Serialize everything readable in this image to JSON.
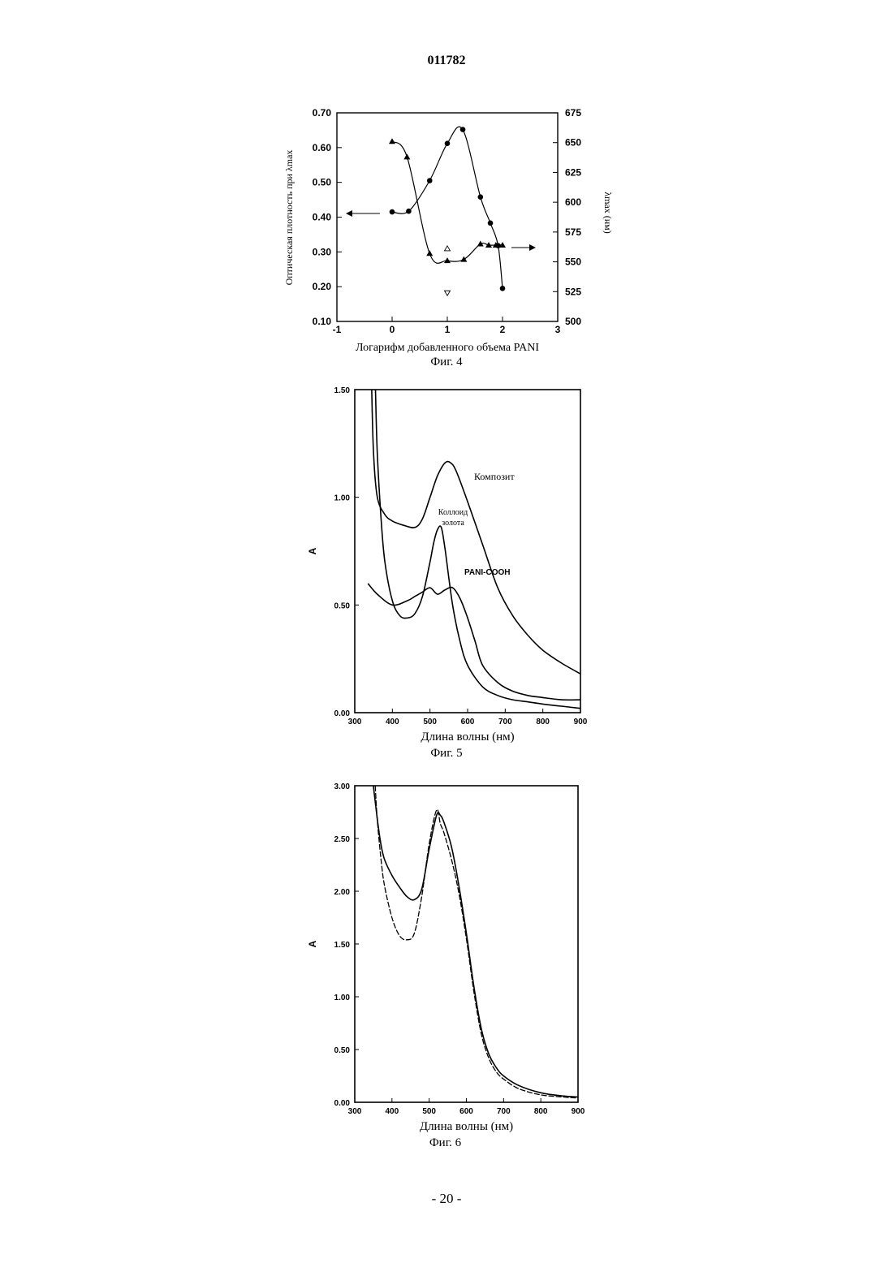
{
  "header": {
    "doc_number": "011782"
  },
  "footer": {
    "page_number": "- 20 -"
  },
  "chart_data": [
    {
      "id": "fig4",
      "type": "line",
      "caption": "Фиг. 4",
      "xlabel": "Логарифм добавленного объема PANI",
      "ylabel_left": "Оптическая плотность при λmax",
      "ylabel_right": "λmax (нм)",
      "xlim": [
        -1,
        3
      ],
      "ylim_left": [
        0.1,
        0.7
      ],
      "ylim_right": [
        500,
        675
      ],
      "x_ticks": [
        "-1",
        "0",
        "1",
        "2",
        "3"
      ],
      "y_ticks_left": [
        "0.70",
        "0.60",
        "0.50",
        "0.40",
        "0.30",
        "0.20",
        "0.10"
      ],
      "y_ticks_right": [
        "675",
        "650",
        "625",
        "600",
        "575",
        "550",
        "525",
        "500"
      ],
      "series": [
        {
          "axis": "left",
          "marker": "circle",
          "x": [
            0.0,
            0.3,
            0.68,
            1.0,
            1.28,
            1.6,
            1.78,
            1.92,
            2.0
          ],
          "y": [
            0.415,
            0.417,
            0.505,
            0.612,
            0.652,
            0.458,
            0.383,
            0.318,
            0.195
          ]
        },
        {
          "axis": "right",
          "marker": "triangle",
          "x": [
            0.0,
            0.27,
            0.68,
            1.0,
            1.3,
            1.6,
            1.75,
            1.88,
            2.0
          ],
          "y": [
            651,
            638,
            557,
            551,
            552,
            565,
            564,
            564,
            564
          ]
        },
        {
          "axis": "right",
          "marker": "open-triangle",
          "x": [
            1.0
          ],
          "y": [
            561
          ]
        },
        {
          "axis": "right",
          "marker": "open-triangle-down",
          "x": [
            1.0
          ],
          "y": [
            524
          ]
        }
      ]
    },
    {
      "id": "fig5",
      "type": "line",
      "caption": "Фиг. 5",
      "xlabel": "Длина волны (нм)",
      "ylabel": "A",
      "xlim": [
        300,
        900
      ],
      "ylim": [
        0,
        1.5
      ],
      "x_ticks": [
        "300",
        "400",
        "500",
        "600",
        "700",
        "800",
        "900"
      ],
      "y_ticks": [
        "1.50",
        "1.00",
        "0.50",
        "0.00"
      ],
      "series": [
        {
          "name": "Композит",
          "x": [
            345,
            350,
            360,
            380,
            400,
            430,
            460,
            480,
            500,
            520,
            540,
            555,
            570,
            600,
            640,
            680,
            720,
            760,
            800,
            850,
            900
          ],
          "y": [
            1.5,
            1.2,
            1.0,
            0.92,
            0.89,
            0.87,
            0.86,
            0.9,
            1.0,
            1.1,
            1.16,
            1.16,
            1.12,
            0.98,
            0.78,
            0.58,
            0.45,
            0.36,
            0.29,
            0.23,
            0.18
          ]
        },
        {
          "name": "Коллоид золота",
          "x": [
            355,
            360,
            370,
            380,
            400,
            420,
            440,
            460,
            480,
            500,
            510,
            520,
            530,
            540,
            560,
            580,
            600,
            640,
            680,
            720,
            760,
            800,
            850,
            900
          ],
          "y": [
            1.5,
            1.2,
            0.9,
            0.7,
            0.52,
            0.45,
            0.44,
            0.46,
            0.54,
            0.7,
            0.79,
            0.85,
            0.86,
            0.76,
            0.5,
            0.33,
            0.22,
            0.12,
            0.08,
            0.06,
            0.05,
            0.04,
            0.03,
            0.02
          ]
        },
        {
          "name": "PANI-COOH",
          "x": [
            335,
            360,
            400,
            440,
            460,
            480,
            500,
            520,
            540,
            560,
            580,
            600,
            620,
            640,
            680,
            720,
            760,
            800,
            850,
            900
          ],
          "y": [
            0.6,
            0.55,
            0.5,
            0.52,
            0.54,
            0.56,
            0.58,
            0.55,
            0.57,
            0.58,
            0.53,
            0.44,
            0.33,
            0.22,
            0.14,
            0.1,
            0.08,
            0.07,
            0.06,
            0.06
          ]
        }
      ]
    },
    {
      "id": "fig6",
      "type": "line",
      "caption": "Фиг. 6",
      "xlabel": "Длина волны (нм)",
      "ylabel": "A",
      "xlim": [
        300,
        900
      ],
      "ylim": [
        0,
        3
      ],
      "x_ticks": [
        "300",
        "400",
        "500",
        "600",
        "700",
        "800",
        "900"
      ],
      "y_ticks": [
        "3.00",
        "2.50",
        "2.00",
        "1.50",
        "1.00",
        "0.50",
        "0.00"
      ],
      "series": [
        {
          "style": "solid",
          "x": [
            350,
            360,
            370,
            380,
            400,
            420,
            440,
            460,
            480,
            500,
            520,
            530,
            540,
            560,
            580,
            600,
            620,
            640,
            660,
            680,
            700,
            740,
            800,
            860,
            900
          ],
          "y": [
            3.0,
            2.7,
            2.45,
            2.3,
            2.15,
            2.04,
            1.95,
            1.92,
            2.02,
            2.4,
            2.72,
            2.72,
            2.65,
            2.42,
            2.05,
            1.6,
            1.1,
            0.7,
            0.46,
            0.33,
            0.25,
            0.16,
            0.09,
            0.06,
            0.05
          ]
        },
        {
          "style": "dashed",
          "x": [
            355,
            360,
            370,
            380,
            400,
            420,
            440,
            460,
            480,
            500,
            520,
            530,
            540,
            560,
            580,
            600,
            620,
            640,
            660,
            680,
            700,
            740,
            800,
            860,
            900
          ],
          "y": [
            3.0,
            2.7,
            2.32,
            2.05,
            1.75,
            1.58,
            1.54,
            1.6,
            1.95,
            2.45,
            2.77,
            2.64,
            2.55,
            2.3,
            1.98,
            1.55,
            1.05,
            0.65,
            0.42,
            0.29,
            0.22,
            0.13,
            0.07,
            0.05,
            0.04
          ]
        }
      ]
    }
  ]
}
